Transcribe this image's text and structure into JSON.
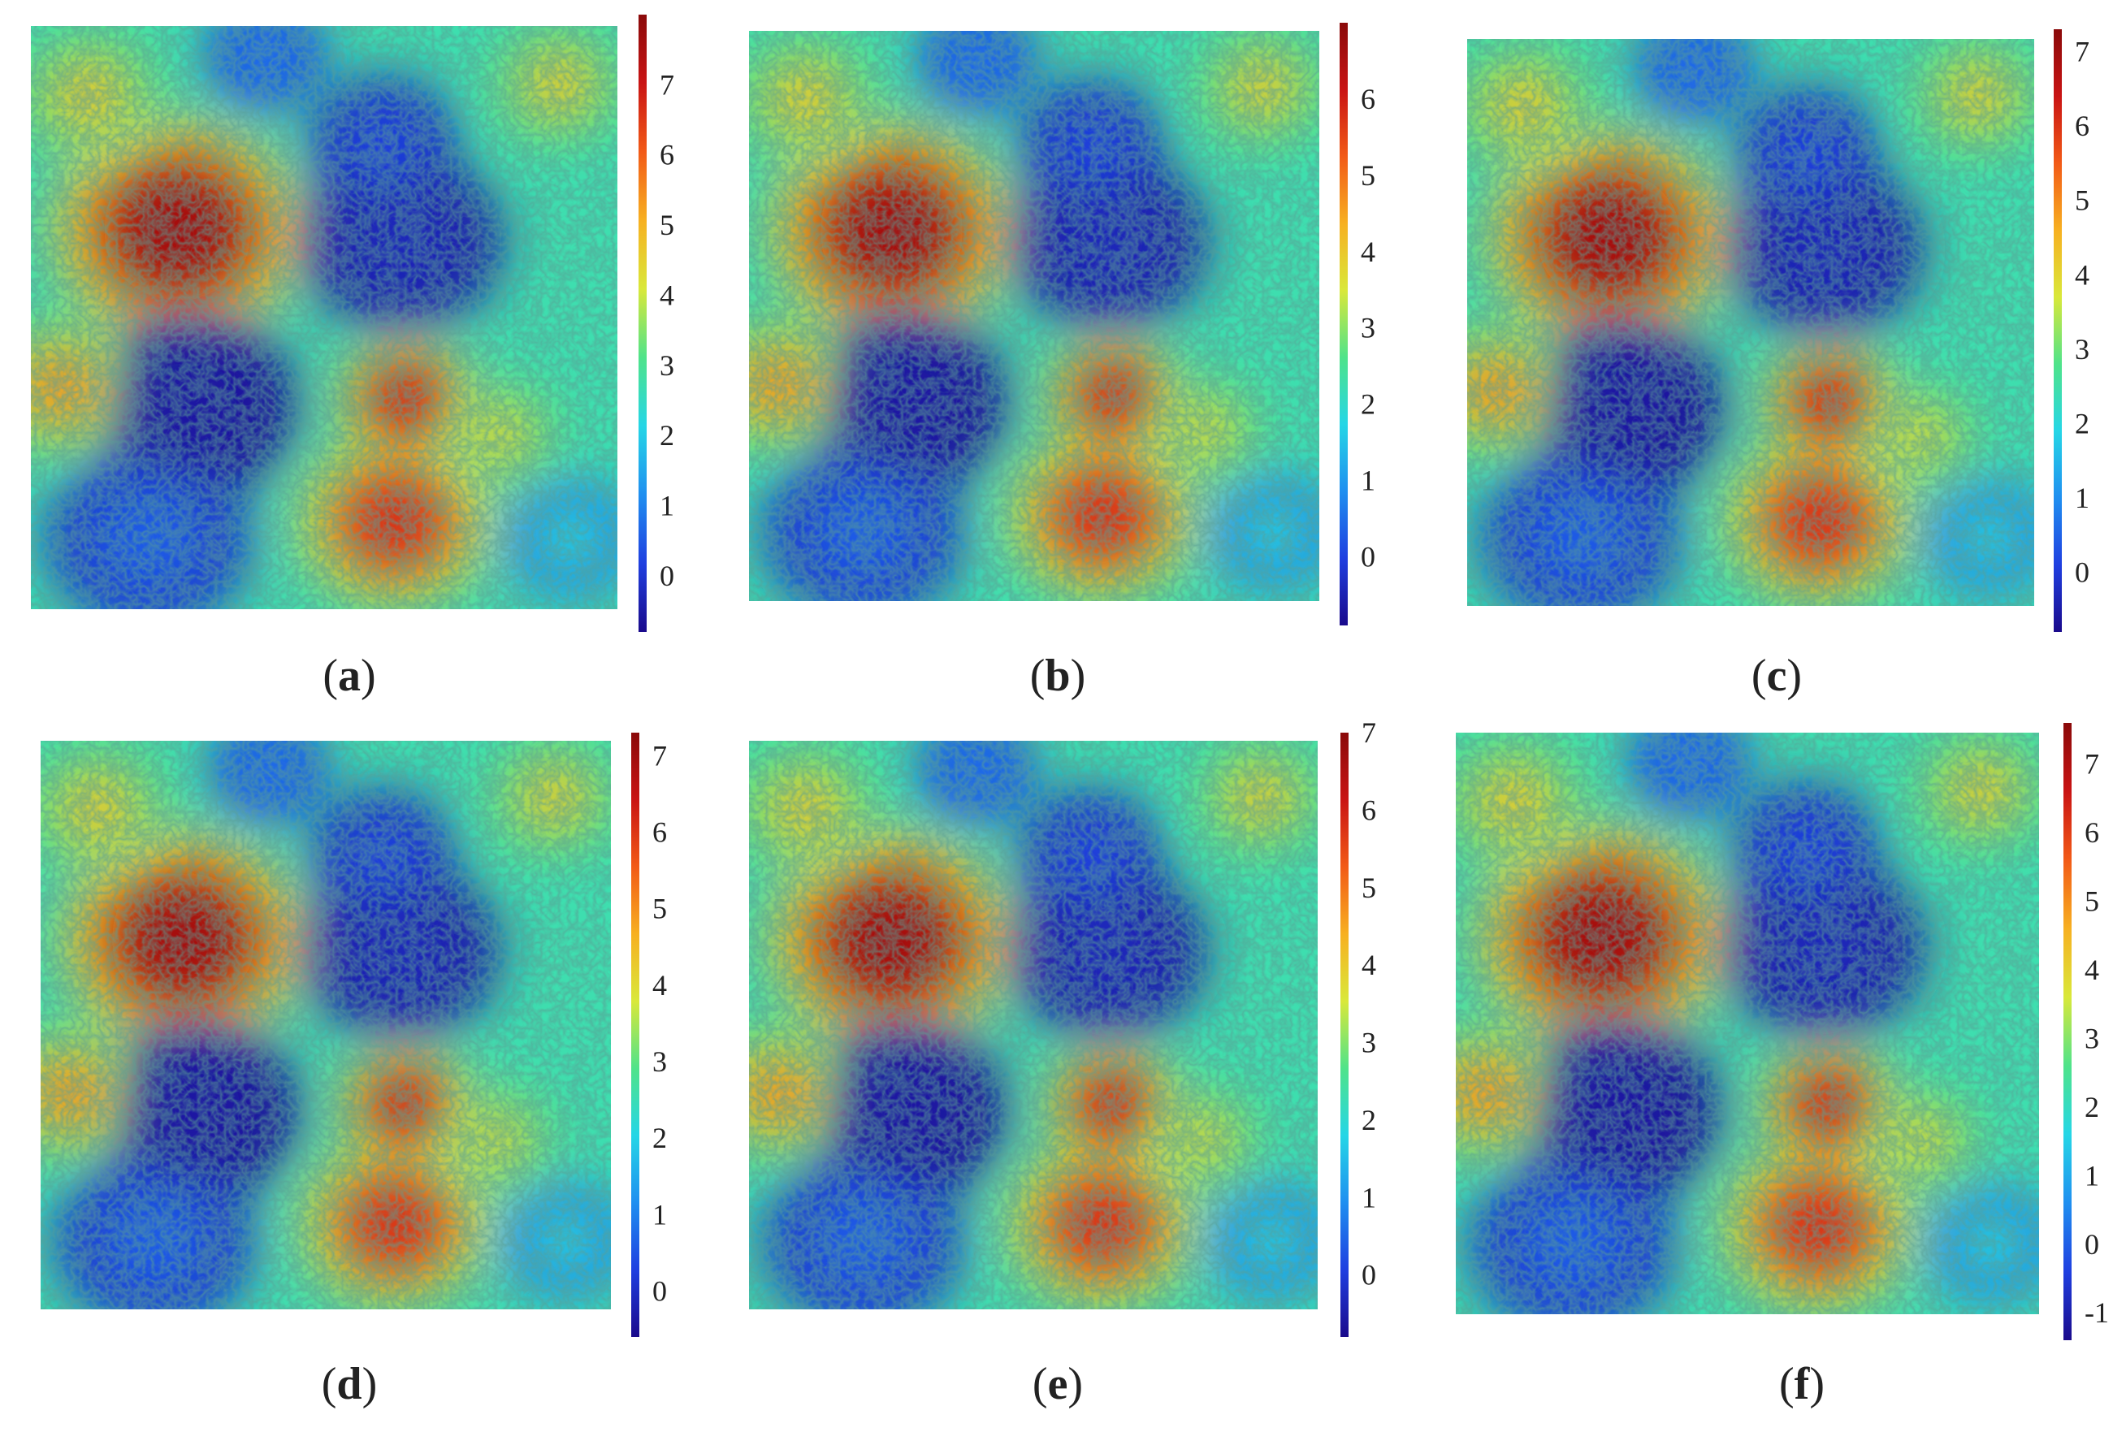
{
  "figure": {
    "colormap": [
      "#1a0a8c",
      "#1f3fe0",
      "#1f8ff0",
      "#25d6e6",
      "#4fe38a",
      "#d9e83a",
      "#f7b021",
      "#f25a17",
      "#c91414",
      "#8a0a0a"
    ]
  },
  "chart_data": [
    {
      "type": "heatmap",
      "label_letter": "a",
      "colorbar": {
        "ticks": [
          0,
          1,
          2,
          3,
          4,
          5,
          6,
          7
        ],
        "range": [
          -0.8,
          8.0
        ]
      }
    },
    {
      "type": "heatmap",
      "label_letter": "b",
      "colorbar": {
        "ticks": [
          0,
          1,
          2,
          3,
          4,
          5,
          6
        ],
        "range": [
          -0.9,
          7.0
        ]
      }
    },
    {
      "type": "heatmap",
      "label_letter": "c",
      "colorbar": {
        "ticks": [
          0,
          1,
          2,
          3,
          4,
          5,
          6,
          7
        ],
        "range": [
          -0.8,
          7.3
        ]
      }
    },
    {
      "type": "heatmap",
      "label_letter": "d",
      "colorbar": {
        "ticks": [
          0,
          1,
          2,
          3,
          4,
          5,
          6,
          7
        ],
        "range": [
          -0.6,
          7.3
        ]
      }
    },
    {
      "type": "heatmap",
      "label_letter": "e",
      "colorbar": {
        "ticks": [
          0,
          1,
          2,
          3,
          4,
          5,
          6,
          7
        ],
        "range": [
          -0.8,
          7.0
        ]
      }
    },
    {
      "type": "heatmap",
      "label_letter": "f",
      "colorbar": {
        "ticks": [
          -1,
          0,
          1,
          2,
          3,
          4,
          5,
          6,
          7
        ],
        "range": [
          -1.4,
          7.6
        ]
      }
    }
  ]
}
